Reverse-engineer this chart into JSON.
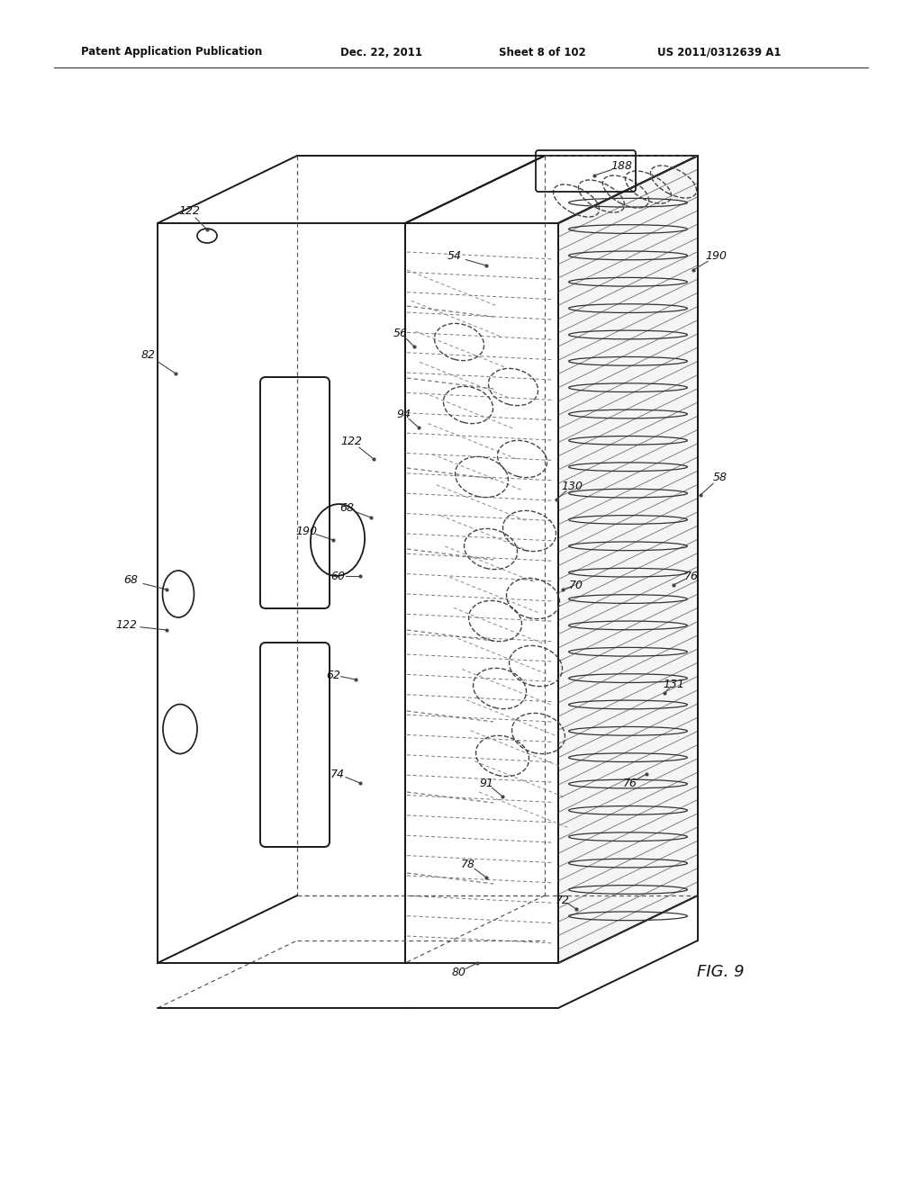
{
  "background_color": "#ffffff",
  "header_text": "Patent Application Publication",
  "header_date": "Dec. 22, 2011",
  "header_sheet": "Sheet 8 of 102",
  "header_patent": "US 2011/0312639 A1",
  "fig_label": "FIG. 9",
  "line_color": "#1a1a1a",
  "dashed_color": "#555555",
  "page_width": 10.24,
  "page_height": 13.2
}
